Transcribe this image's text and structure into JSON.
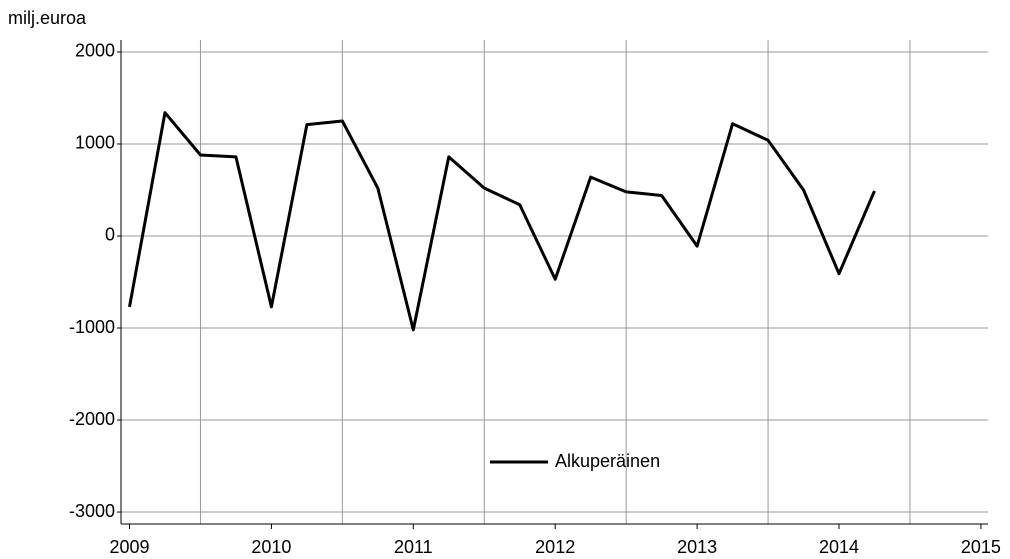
{
  "chart_data": {
    "type": "line",
    "y_label": "milj.euroa",
    "x": [
      2009,
      2009.25,
      2009.5,
      2009.75,
      2010,
      2010.25,
      2010.5,
      2010.75,
      2011,
      2011.25,
      2011.5,
      2011.75,
      2012,
      2012.25,
      2012.5,
      2012.75,
      2013,
      2013.25,
      2013.5,
      2013.75,
      2014,
      2014.25
    ],
    "series": [
      {
        "name": "Alkuperäinen",
        "color": "#000000",
        "values": [
          -770,
          1340,
          880,
          860,
          -770,
          1210,
          1250,
          520,
          -1020,
          860,
          520,
          340,
          -470,
          640,
          480,
          440,
          -110,
          1220,
          1040,
          500,
          -410,
          490
        ]
      }
    ],
    "xlim": [
      2008.94,
      2015.05
    ],
    "xticks": [
      2009,
      2010,
      2011,
      2012,
      2013,
      2014,
      2015
    ],
    "xgrid": [
      2009.5,
      2010.5,
      2011.5,
      2012.5,
      2013.5,
      2014.5
    ],
    "ylim": [
      -3130,
      2130
    ],
    "yticks": [
      -3000,
      -2000,
      -1000,
      0,
      1000,
      2000
    ],
    "grid": true,
    "legend": "bottom"
  }
}
